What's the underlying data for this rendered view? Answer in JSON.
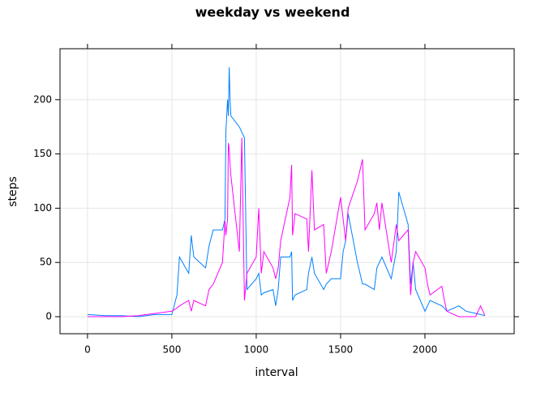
{
  "chart_data": {
    "type": "line",
    "title": "weekday vs weekend",
    "x_label": "interval",
    "y_label": "steps",
    "x": [
      0,
      100,
      200,
      300,
      400,
      500,
      530,
      545,
      600,
      615,
      630,
      700,
      720,
      745,
      800,
      815,
      820,
      830,
      835,
      840,
      845,
      850,
      900,
      915,
      930,
      945,
      1000,
      1015,
      1030,
      1045,
      1100,
      1115,
      1130,
      1145,
      1200,
      1210,
      1215,
      1230,
      1300,
      1310,
      1330,
      1345,
      1400,
      1415,
      1445,
      1500,
      1515,
      1530,
      1545,
      1600,
      1630,
      1645,
      1700,
      1715,
      1730,
      1745,
      1800,
      1830,
      1845,
      1900,
      1915,
      1930,
      1945,
      2000,
      2015,
      2030,
      2100,
      2115,
      2130,
      2200,
      2245,
      2300,
      2330,
      2355
    ],
    "series": [
      {
        "color": "#0080ff",
        "values": [
          2,
          1,
          1,
          0,
          2,
          2,
          20,
          55,
          40,
          75,
          55,
          45,
          65,
          80,
          80,
          90,
          170,
          200,
          185,
          230,
          200,
          185,
          175,
          170,
          165,
          25,
          35,
          40,
          20,
          22,
          25,
          10,
          25,
          55,
          55,
          60,
          15,
          20,
          25,
          40,
          55,
          40,
          25,
          30,
          35,
          35,
          60,
          70,
          95,
          50,
          30,
          30,
          25,
          45,
          50,
          55,
          35,
          60,
          115,
          85,
          30,
          50,
          25,
          5,
          10,
          15,
          10,
          8,
          5,
          10,
          5,
          3,
          2,
          1
        ]
      },
      {
        "color": "#ff00ff",
        "values": [
          0,
          0,
          0,
          1,
          3,
          5,
          8,
          10,
          15,
          5,
          15,
          10,
          25,
          30,
          50,
          88,
          75,
          90,
          160,
          155,
          140,
          130,
          60,
          165,
          15,
          40,
          55,
          100,
          40,
          60,
          45,
          35,
          45,
          70,
          110,
          140,
          75,
          95,
          90,
          60,
          135,
          80,
          85,
          40,
          60,
          110,
          90,
          70,
          100,
          125,
          145,
          80,
          95,
          105,
          80,
          105,
          50,
          85,
          70,
          80,
          20,
          50,
          60,
          45,
          30,
          20,
          28,
          15,
          5,
          0,
          0,
          0,
          10,
          1
        ]
      }
    ],
    "xlim": [
      -163,
      2529
    ],
    "ylim": [
      -15.7,
      247
    ],
    "xticks": [
      0,
      500,
      1000,
      1500,
      2000
    ],
    "yticks": [
      0,
      50,
      100,
      150,
      200
    ],
    "grid": true
  }
}
